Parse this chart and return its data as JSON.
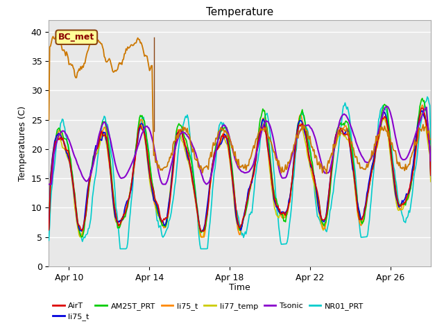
{
  "title": "Temperature",
  "xlabel": "Time",
  "ylabel": "Temperatures (C)",
  "ylim": [
    0,
    42
  ],
  "yticks": [
    0,
    5,
    10,
    15,
    20,
    25,
    30,
    35,
    40
  ],
  "xtick_labels": [
    "Apr 10",
    "Apr 14",
    "Apr 18",
    "Apr 22",
    "Apr 26"
  ],
  "plot_bg": "#e8e8e8",
  "grid_color": "#ffffff",
  "bc_met_box": {
    "text": "BC_met",
    "facecolor": "#ffff99",
    "edgecolor": "#8B4513",
    "textcolor": "#8B0000"
  },
  "colors": {
    "AirT": "#dd0000",
    "li75_blue": "#0000dd",
    "AM25T_PRT": "#00cc00",
    "li75_orange": "#ff8800",
    "li77_temp": "#cccc00",
    "Tsonic": "#8800cc",
    "NR01_PRT": "#00cccc",
    "BC_met": "#cc7700"
  },
  "legend_entries": [
    {
      "label": "AirT",
      "color": "#dd0000"
    },
    {
      "label": "li75_t",
      "color": "#0000dd"
    },
    {
      "label": "AM25T_PRT",
      "color": "#00cc00"
    },
    {
      "label": "li75_t",
      "color": "#ff8800"
    },
    {
      "label": "li77_temp",
      "color": "#cccc00"
    },
    {
      "label": "Tsonic",
      "color": "#8800cc"
    },
    {
      "label": "NR01_PRT",
      "color": "#00cccc"
    }
  ]
}
